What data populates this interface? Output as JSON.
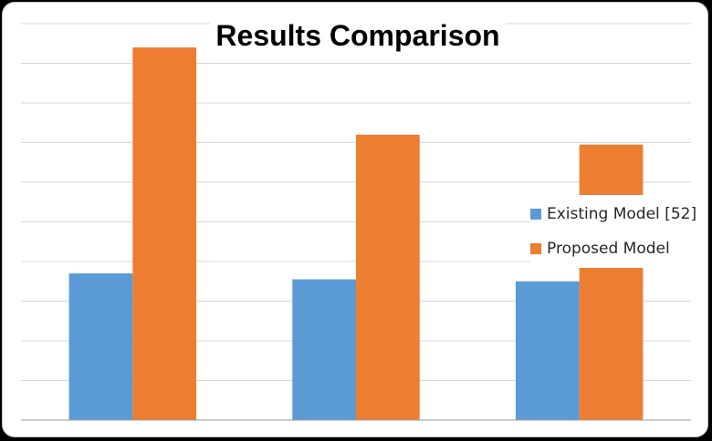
{
  "chart_data": {
    "type": "bar",
    "title": "Results Comparison",
    "categories": [
      "",
      "",
      ""
    ],
    "series": [
      {
        "name": "Existing Model [52]",
        "values": [
          37,
          35.5,
          35
        ],
        "color": "#5b9bd5"
      },
      {
        "name": "Proposed Model",
        "values": [
          94,
          72,
          69.5
        ],
        "color": "#ed7d31"
      }
    ],
    "ylim": [
      0,
      100
    ],
    "ytick_step": 10,
    "grid": true,
    "legend": "right",
    "xlabel": "",
    "ylabel": ""
  }
}
